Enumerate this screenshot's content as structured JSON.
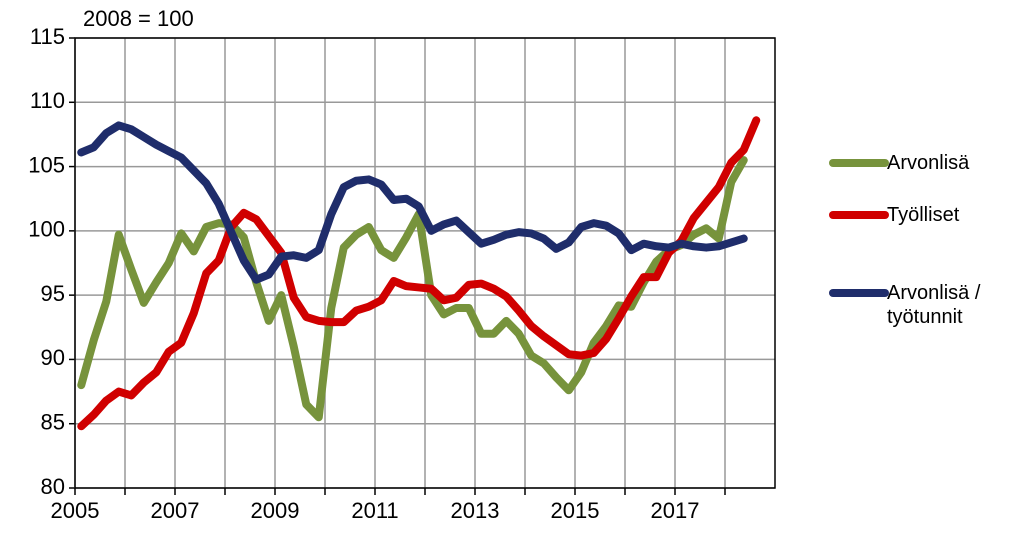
{
  "chart_data": {
    "type": "line",
    "y_label": "2008 = 100",
    "x": [
      2005.125,
      2005.375,
      2005.625,
      2005.875,
      2006.125,
      2006.375,
      2006.625,
      2006.875,
      2007.125,
      2007.375,
      2007.625,
      2007.875,
      2008.125,
      2008.375,
      2008.625,
      2008.875,
      2009.125,
      2009.375,
      2009.625,
      2009.875,
      2010.125,
      2010.375,
      2010.625,
      2010.875,
      2011.125,
      2011.375,
      2011.625,
      2011.875,
      2012.125,
      2012.375,
      2012.625,
      2012.875,
      2013.125,
      2013.375,
      2013.625,
      2013.875,
      2014.125,
      2014.375,
      2014.625,
      2014.875,
      2015.125,
      2015.375,
      2015.625,
      2015.875,
      2016.125,
      2016.375,
      2016.625,
      2016.875,
      2017.125,
      2017.375,
      2017.625,
      2017.875,
      2018.125,
      2018.375,
      2018.625
    ],
    "series": [
      {
        "name": "Arvonlisä",
        "color": "#77933c",
        "values": [
          88,
          91.5,
          94.5,
          99.7,
          97,
          94.4,
          96,
          97.5,
          99.8,
          98.4,
          100.3,
          100.6,
          100.5,
          99.5,
          96,
          93,
          95,
          91,
          86.5,
          85.5,
          94,
          98.7,
          99.7,
          100.3,
          98.5,
          97.9,
          99.5,
          101.3,
          95,
          93.5,
          94,
          94,
          92,
          92,
          93,
          92,
          90.3,
          89.7,
          88.6,
          87.6,
          89,
          91.3,
          92.6,
          94.2,
          94.1,
          96,
          97.6,
          98.5,
          98.9,
          99.7,
          100.2,
          99.4,
          103.8,
          105.5,
          null
        ]
      },
      {
        "name": "Työlliset",
        "color": "#d00000",
        "values": [
          84.8,
          85.7,
          86.8,
          87.5,
          87.2,
          88.2,
          89,
          90.6,
          91.3,
          93.6,
          96.7,
          97.7,
          100.3,
          101.4,
          100.9,
          99.6,
          98.3,
          94.8,
          93.3,
          93,
          92.9,
          92.9,
          93.8,
          94.1,
          94.6,
          96.1,
          95.7,
          95.6,
          95.5,
          94.6,
          94.8,
          95.8,
          95.9,
          95.5,
          94.9,
          93.8,
          92.6,
          91.8,
          91.1,
          90.4,
          90.3,
          90.5,
          91.6,
          93.2,
          94.9,
          96.4,
          96.4,
          98.3,
          99.2,
          101,
          102.2,
          103.4,
          105.3,
          106.3,
          108.6
        ]
      },
      {
        "name": "Arvonlisä / työtunnit",
        "color": "#1f2d6b",
        "values": [
          106.1,
          106.5,
          107.6,
          108.2,
          107.9,
          107.3,
          106.7,
          106.2,
          105.7,
          104.7,
          103.7,
          102.1,
          99.9,
          97.7,
          96.2,
          96.6,
          98,
          98.1,
          97.9,
          98.5,
          101.3,
          103.4,
          103.9,
          104,
          103.6,
          102.4,
          102.5,
          101.9,
          100,
          100.5,
          100.8,
          99.9,
          99,
          99.3,
          99.7,
          99.9,
          99.8,
          99.4,
          98.6,
          99.1,
          100.3,
          100.6,
          100.4,
          99.8,
          98.5,
          99,
          98.8,
          98.7,
          99,
          98.8,
          98.7,
          98.8,
          99.1,
          99.4,
          null
        ]
      }
    ],
    "xlim": [
      2005,
      2019
    ],
    "xticks": [
      2005,
      2007,
      2009,
      2011,
      2013,
      2015,
      2017
    ],
    "xminorticks": [
      2006,
      2008,
      2010,
      2012,
      2014,
      2016,
      2018
    ],
    "ylim": [
      80,
      115
    ],
    "yticks": [
      80,
      85,
      90,
      95,
      100,
      105,
      110,
      115
    ],
    "grid": true,
    "legend": "right"
  }
}
